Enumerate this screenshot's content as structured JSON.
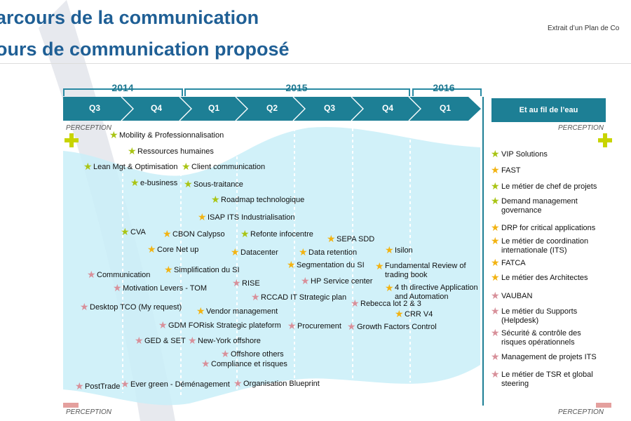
{
  "header": {
    "title_line1": "arcours de la communication",
    "title_line2": "ours de communication proposé",
    "extract_note": "Extrait d’un Plan de Co"
  },
  "timeline": {
    "years": [
      "2014",
      "2015",
      "2016"
    ],
    "quarters": [
      "Q3",
      "Q4",
      "Q1",
      "Q2",
      "Q3",
      "Q4",
      "Q1"
    ],
    "perception_label": "PERCEPTION"
  },
  "items": [
    "Mobility & Professionnalisation",
    "Ressources humaines",
    "Lean Mgt & Optimisation",
    "Client communication",
    "e-business",
    "Sous-traitance",
    "Roadmap technologique",
    "ISAP ITS Industrialisation",
    "CVA",
    "CBON Calypso",
    "Refonte infocentre",
    "SEPA SDD",
    "Core Net up",
    "Datacenter",
    "Data retention",
    "Isilon",
    "Communication",
    "Simplification du SI",
    "Segmentation du SI",
    "Fundamental Review of trading book",
    "Motivation Levers - TOM",
    "RISE",
    "HP Service center",
    "4 th directive Application and Automation",
    "Desktop TCO (My request)",
    "RCCAD IT Strategic plan",
    "Rebecca lot 2 & 3",
    "Vendor management",
    "CRR V4",
    "GDM FORisk Strategic plateform",
    "Procurement",
    "Growth Factors Control",
    "GED & SET",
    "New-York offshore",
    "Offshore others",
    "Compliance et risques",
    "PostTrade",
    "Ever green - Déménagement",
    "Organisation Blueprint"
  ],
  "side_panel": {
    "title": "Et au fil de l’eau",
    "items": [
      "VIP Solutions",
      "FAST",
      "Le métier de chef de projets",
      "Demand management governance",
      "DRP for critical applications",
      "Le métier de coordination internationale (ITS)",
      "FATCA",
      "Le métier des Architectes",
      "VAUBAN",
      "Le métier du Supports (Helpdesk)",
      "Sécurité & contrôle des risques opérationnels",
      "Management de projets ITS",
      "Le métier de TSR et global steering"
    ]
  },
  "colors": {
    "title": "#1f5f95",
    "arrow_band": "#1d7f95",
    "wave": "#c9eef8",
    "star_green": "#a9c414",
    "star_orange": "#f2b312",
    "star_pink": "#d8909a",
    "plus": "#c8d400",
    "minus": "#e4a09e"
  }
}
